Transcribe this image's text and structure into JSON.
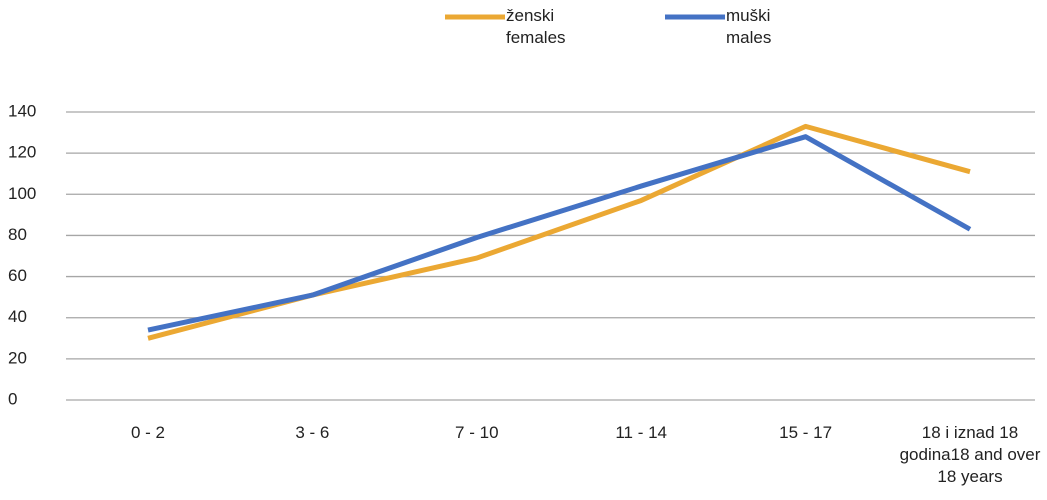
{
  "chart_data": {
    "type": "line",
    "categories": [
      "0 - 2",
      "3 - 6",
      "7 - 10",
      "11 - 14",
      "15 - 17",
      "18 i iznad 18 godina18 and over 18 years"
    ],
    "series": [
      {
        "name": "ženski females",
        "color": "#EBA833",
        "values": [
          30,
          51,
          69,
          97,
          133,
          111
        ]
      },
      {
        "name": "muški males",
        "color": "#4472C4",
        "values": [
          34,
          51,
          79,
          104,
          128,
          83
        ]
      }
    ],
    "ylim": [
      0,
      140
    ],
    "yticks": [
      0,
      20,
      40,
      60,
      80,
      100,
      120,
      140
    ],
    "grid": true,
    "legend": "top"
  }
}
